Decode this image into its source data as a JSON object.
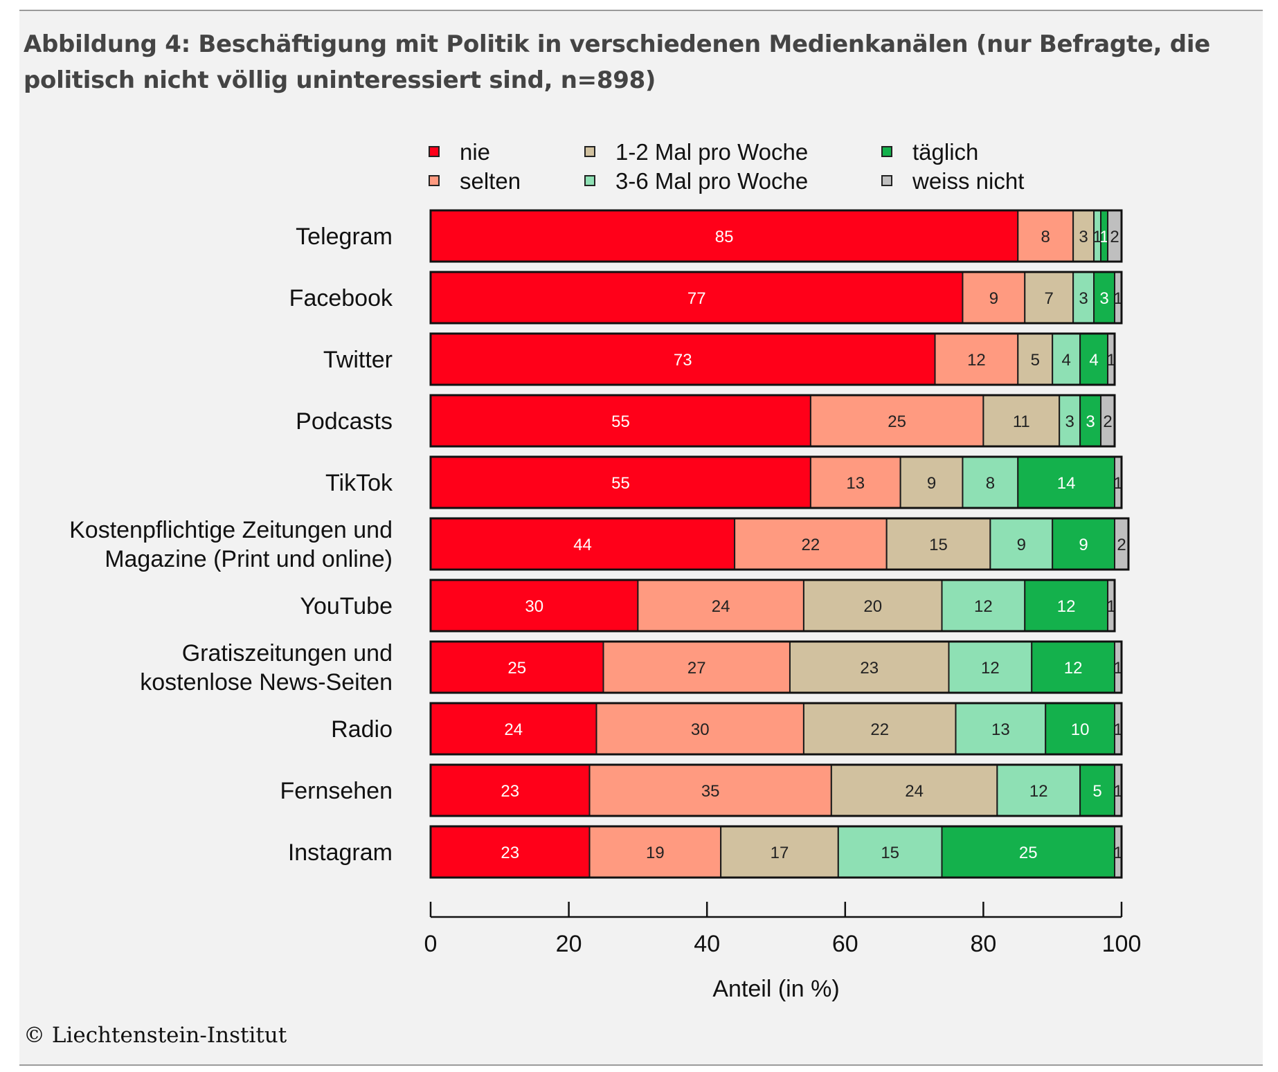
{
  "figure": {
    "title": "Abbildung 4: Beschäftigung mit Politik in verschiedenen Medienkanälen (nur Befragte, die politisch nicht völlig uninteressiert sind, n=898)",
    "credit": "© Liechtenstein-Institut"
  },
  "chart_data": {
    "type": "bar",
    "orientation": "horizontal",
    "stacked": true,
    "title": "Abbildung 4: Beschäftigung mit Politik in verschiedenen Medienkanälen (nur Befragte, die politisch nicht völlig uninteressiert sind, n=898)",
    "xlabel": "Anteil (in %)",
    "ylabel": "",
    "xlim": [
      0,
      100
    ],
    "xticks": [
      0,
      20,
      40,
      60,
      80,
      100
    ],
    "legend_position": "top",
    "categories": [
      [
        "Telegram"
      ],
      [
        "Facebook"
      ],
      [
        "Twitter"
      ],
      [
        "Podcasts"
      ],
      [
        "TikTok"
      ],
      [
        "Kostenpflichtige Zeitungen und",
        "Magazine (Print und online)"
      ],
      [
        "YouTube"
      ],
      [
        "Gratiszeitungen und",
        "kostenlose News-Seiten"
      ],
      [
        "Radio"
      ],
      [
        "Fernsehen"
      ],
      [
        "Instagram"
      ]
    ],
    "series": [
      {
        "name": "nie",
        "color": "#ff0019",
        "label_color": "#ffffff",
        "values": [
          85,
          77,
          73,
          55,
          55,
          44,
          30,
          25,
          24,
          23,
          23
        ]
      },
      {
        "name": "selten",
        "color": "#ff9a80",
        "label_color": "#222222",
        "values": [
          8,
          9,
          12,
          25,
          13,
          22,
          24,
          27,
          30,
          35,
          19
        ]
      },
      {
        "name": "1-2 Mal pro Woche",
        "color": "#d1c19f",
        "label_color": "#222222",
        "values": [
          3,
          7,
          5,
          11,
          9,
          15,
          20,
          23,
          22,
          24,
          17
        ]
      },
      {
        "name": "3-6 Mal pro Woche",
        "color": "#8ee0b4",
        "label_color": "#222222",
        "values": [
          1,
          3,
          4,
          3,
          8,
          9,
          12,
          12,
          13,
          12,
          15
        ]
      },
      {
        "name": "täglich",
        "color": "#14b14c",
        "label_color": "#ffffff",
        "values": [
          1,
          3,
          4,
          3,
          14,
          9,
          12,
          12,
          10,
          5,
          25
        ]
      },
      {
        "name": "weiss nicht",
        "color": "#bfbfbf",
        "label_color": "#222222",
        "values": [
          2,
          1,
          1,
          2,
          1,
          2,
          1,
          1,
          1,
          1,
          1
        ]
      }
    ]
  }
}
